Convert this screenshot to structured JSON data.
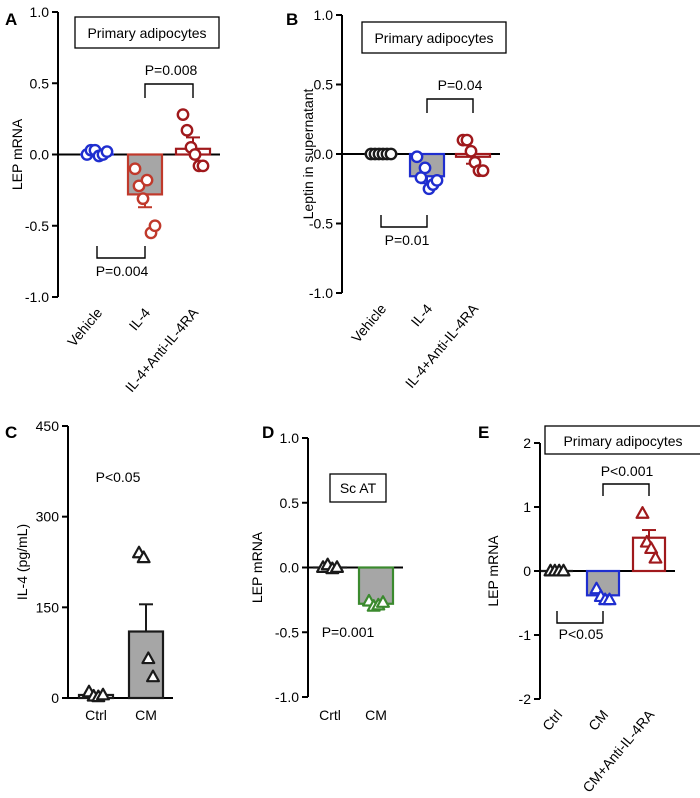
{
  "chart_data": [
    {
      "panel_letter": "A",
      "type": "bar",
      "title": "Primary adipocytes",
      "ylabel": "LEP mRNA",
      "ylim": [
        -1.0,
        1.0
      ],
      "yticks": [
        1.0,
        0.5,
        0.0,
        -0.5,
        -1.0
      ],
      "ytick_labels": [
        "1.0",
        "0.5",
        "0.0",
        "-0.5",
        "-1.0"
      ],
      "categories": [
        "Vehicle",
        "IL-4",
        "IL-4+Anti-IL-4RA"
      ],
      "values": [
        0.0,
        -0.28,
        0.04
      ],
      "errors": [
        0.0,
        0.09,
        0.08
      ],
      "points": [
        [
          0.0,
          0.03,
          0.03,
          -0.01,
          0.0,
          0.02
        ],
        [
          -0.1,
          -0.22,
          -0.31,
          -0.18,
          -0.55,
          -0.5
        ],
        [
          0.28,
          0.17,
          0.05,
          0.0,
          -0.08,
          -0.08
        ]
      ],
      "colors": [
        "#1f2ecf",
        "#c0392b",
        "#a0191c"
      ],
      "bar_fills": [
        "#ffffff",
        "#a6a6a6",
        "#ffffff"
      ],
      "marker": "circle",
      "comparisons": [
        {
          "from": 0,
          "to": 1,
          "label": "P=0.004",
          "position": "below"
        },
        {
          "from": 1,
          "to": 2,
          "label": "P=0.008",
          "position": "above"
        }
      ]
    },
    {
      "panel_letter": "B",
      "type": "bar",
      "title": "Primary adipocytes",
      "ylabel": "Leptin in supernatant",
      "ylim": [
        -1.0,
        1.0
      ],
      "yticks": [
        1.0,
        0.5,
        0.0,
        -0.5,
        -1.0
      ],
      "ytick_labels": [
        "1.0",
        "0.5",
        "0.0",
        "-0.5",
        "-1.0"
      ],
      "categories": [
        "Vehicle",
        "IL-4",
        "IL-4+Anti-IL-4RA"
      ],
      "values": [
        0.0,
        -0.16,
        -0.02
      ],
      "errors": [
        0.0,
        0.05,
        0.05
      ],
      "points": [
        [
          0.0,
          0.0,
          0.0,
          0.0,
          0.0,
          0.0
        ],
        [
          -0.02,
          -0.17,
          -0.1,
          -0.25,
          -0.22,
          -0.19
        ],
        [
          0.1,
          0.1,
          0.02,
          -0.06,
          -0.12,
          -0.12
        ]
      ],
      "colors": [
        "#1a1a1a",
        "#1f2ecf",
        "#a0191c"
      ],
      "bar_fills": [
        "#ffffff",
        "#a6a6a6",
        "#ffffff"
      ],
      "marker": "circle",
      "comparisons": [
        {
          "from": 0,
          "to": 1,
          "label": "P=0.01",
          "position": "below"
        },
        {
          "from": 1,
          "to": 2,
          "label": "P=0.04",
          "position": "above"
        }
      ]
    },
    {
      "panel_letter": "C",
      "type": "bar",
      "title": "",
      "ylabel": "IL-4 (pg/mL)",
      "ylim": [
        0,
        450
      ],
      "yticks": [
        450,
        300,
        150,
        0
      ],
      "ytick_labels": [
        "450",
        "300",
        "150",
        "0"
      ],
      "categories": [
        "Ctrl",
        "CM"
      ],
      "values": [
        5,
        110
      ],
      "errors": [
        2,
        45
      ],
      "points": [
        [
          10,
          3,
          2,
          5
        ],
        [
          240,
          232,
          65,
          35
        ]
      ],
      "colors": [
        "#1a1a1a",
        "#1a1a1a"
      ],
      "bar_fills": [
        "#ffffff",
        "#a6a6a6"
      ],
      "marker": "triangle",
      "annotation": "P<0.05",
      "comparisons": []
    },
    {
      "panel_letter": "D",
      "type": "bar",
      "title": "Sc AT",
      "ylabel": "LEP mRNA",
      "ylim": [
        -1.0,
        1.0
      ],
      "yticks": [
        1.0,
        0.5,
        0.0,
        -0.5,
        -1.0
      ],
      "ytick_labels": [
        "1.0",
        "0.5",
        "0.0",
        "-0.5",
        "-1.0"
      ],
      "categories": [
        "Crtl",
        "CM"
      ],
      "values": [
        0.0,
        -0.28
      ],
      "errors": [
        0.0,
        0.02
      ],
      "points": [
        [
          0.0,
          0.02,
          -0.01,
          0.0
        ],
        [
          -0.26,
          -0.3,
          -0.29,
          -0.27
        ]
      ],
      "colors": [
        "#1a1a1a",
        "#3b8a2e"
      ],
      "bar_fills": [
        "#ffffff",
        "#a6a6a6"
      ],
      "marker": "triangle",
      "annotation": "P=0.001",
      "comparisons": []
    },
    {
      "panel_letter": "E",
      "type": "bar",
      "title": "Primary adipocytes",
      "ylabel": "LEP mRNA",
      "ylim": [
        -2,
        2
      ],
      "yticks": [
        2,
        1,
        0,
        -1,
        -2
      ],
      "ytick_labels": [
        "2",
        "1",
        "0",
        "-1",
        "-2"
      ],
      "categories": [
        "Ctrl",
        "CM",
        "CM+Anti-IL-4RA"
      ],
      "values": [
        0.0,
        -0.38,
        0.52
      ],
      "errors": [
        0.0,
        0.05,
        0.12
      ],
      "points": [
        [
          0.0,
          0.0,
          0.0,
          0.0
        ],
        [
          -0.28,
          -0.4,
          -0.45,
          -0.45
        ],
        [
          0.9,
          0.45,
          0.35,
          0.2
        ]
      ],
      "colors": [
        "#1a1a1a",
        "#1f2ecf",
        "#a0191c"
      ],
      "bar_fills": [
        "#ffffff",
        "#a6a6a6",
        "#ffffff"
      ],
      "marker": "triangle",
      "comparisons": [
        {
          "from": 0,
          "to": 1,
          "label": "P<0.05",
          "position": "below"
        },
        {
          "from": 1,
          "to": 2,
          "label": "P<0.001",
          "position": "above"
        }
      ]
    }
  ]
}
